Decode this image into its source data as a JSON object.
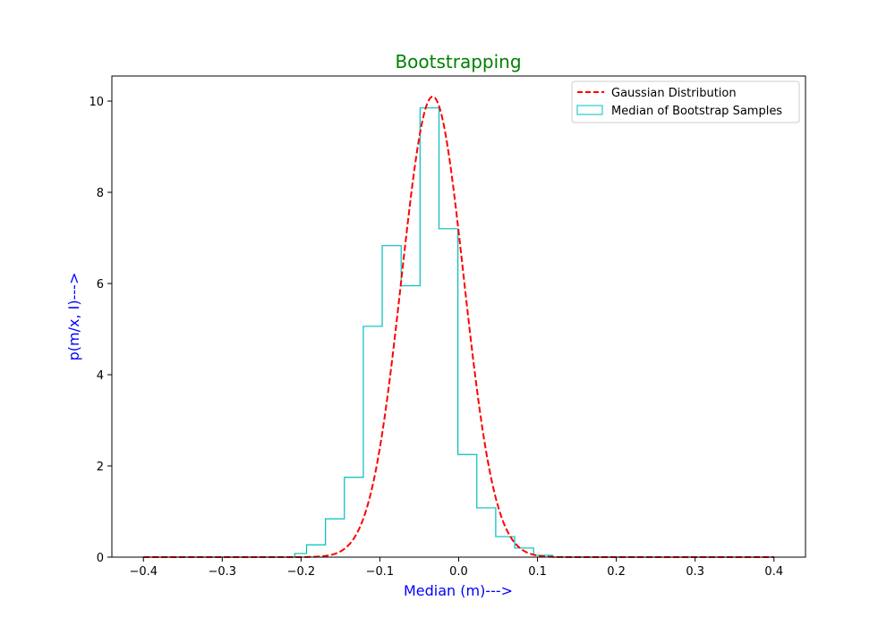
{
  "chart_data": {
    "type": "histogram",
    "title": "Bootstrapping",
    "xlabel": "Median (m)--->",
    "ylabel": "p(m/x, I)--->",
    "xlim": [
      -0.44,
      0.44
    ],
    "ylim": [
      0,
      10.55
    ],
    "x_ticks": [
      -0.4,
      -0.3,
      -0.2,
      -0.1,
      0.0,
      0.1,
      0.2,
      0.3,
      0.4
    ],
    "x_tick_labels": [
      "−0.4",
      "−0.3",
      "−0.2",
      "−0.1",
      "0.0",
      "0.1",
      "0.2",
      "0.3",
      "0.4"
    ],
    "y_ticks": [
      0,
      2,
      4,
      6,
      8,
      10
    ],
    "y_tick_labels": [
      "0",
      "2",
      "4",
      "6",
      "8",
      "10"
    ],
    "grid": false,
    "legend_position": "top-right",
    "colors": {
      "title": "#008000",
      "axis_labels": "#0000ff",
      "gaussian": "#ff0000",
      "histogram": "#00bfbf",
      "axes": "#000000"
    },
    "series": [
      {
        "name": "Gaussian Distribution",
        "kind": "line",
        "style": "dashed",
        "mean": -0.033,
        "std": 0.0395,
        "x_range": [
          -0.4,
          0.4
        ]
      },
      {
        "name": "Median of Bootstrap Samples",
        "kind": "step-histogram",
        "bin_edges": [
          -0.4,
          -0.376,
          -0.352,
          -0.328,
          -0.304,
          -0.28,
          -0.256,
          -0.232,
          -0.208,
          -0.193,
          -0.169,
          -0.145,
          -0.121,
          -0.097,
          -0.073,
          -0.049,
          -0.025,
          -0.001,
          0.023,
          0.047,
          0.071,
          0.095,
          0.119,
          0.143,
          0.167,
          0.191,
          0.215,
          0.239,
          0.263,
          0.287,
          0.311,
          0.335,
          0.359,
          0.4
        ],
        "values": [
          0,
          0,
          0,
          0,
          0,
          0,
          0,
          0,
          0.08,
          0.27,
          0.84,
          1.75,
          5.06,
          6.83,
          5.95,
          9.85,
          7.2,
          2.25,
          1.08,
          0.45,
          0.2,
          0.04,
          0,
          0,
          0,
          0,
          0,
          0,
          0,
          0,
          0,
          0,
          0
        ]
      }
    ]
  }
}
